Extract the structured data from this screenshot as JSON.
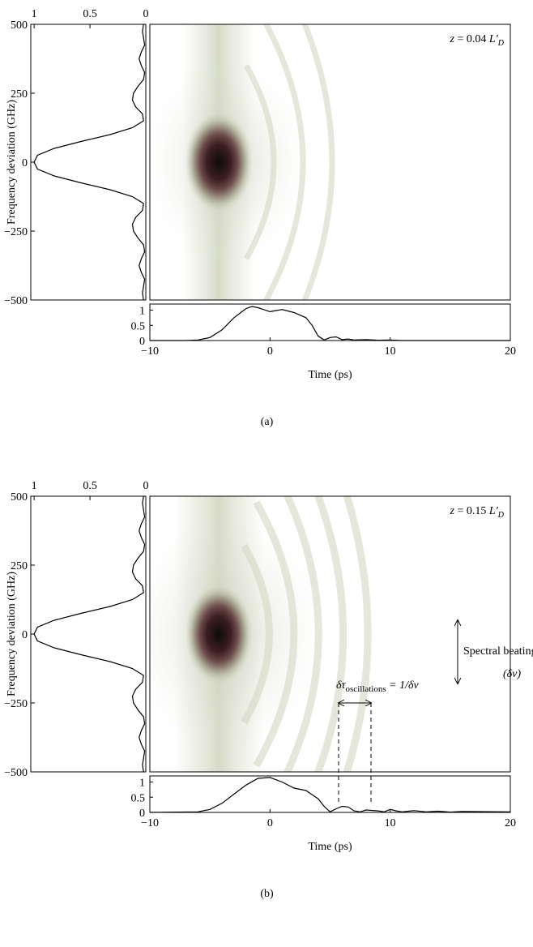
{
  "chart_data": [
    {
      "type": "spectrogram",
      "label": "(a)",
      "ylabel": "Frequency deviation (GHz)",
      "xlabel": "Time (ps)",
      "annotation": {
        "var": "z",
        "eq": " = 0.04 ",
        "sym": "L′",
        "sub": "D"
      },
      "line_color": "#000000",
      "spectrum": {
        "frequency": [
          -500,
          -475,
          -450,
          -425,
          -400,
          -375,
          -350,
          -325,
          -300,
          -275,
          -250,
          -225,
          -200,
          -175,
          -150,
          -125,
          -100,
          -75,
          -50,
          -25,
          0,
          25,
          50,
          75,
          100,
          125,
          150,
          175,
          200,
          225,
          250,
          275,
          300,
          325,
          350,
          375,
          400,
          425,
          450,
          475,
          500
        ],
        "values": [
          0.02,
          0.03,
          0.02,
          0.01,
          0.04,
          0.06,
          0.04,
          0.01,
          0.02,
          0.07,
          0.11,
          0.12,
          0.09,
          0.03,
          0.02,
          0.12,
          0.32,
          0.58,
          0.82,
          0.97,
          1.0,
          0.97,
          0.82,
          0.58,
          0.32,
          0.12,
          0.02,
          0.03,
          0.09,
          0.12,
          0.11,
          0.07,
          0.02,
          0.01,
          0.04,
          0.06,
          0.04,
          0.01,
          0.02,
          0.03,
          0.02
        ],
        "xlim": [
          1.03,
          0
        ],
        "xticks": [
          1,
          0.5,
          0
        ],
        "ylim": [
          -500,
          500
        ],
        "yticks": [
          {
            "value": -500,
            "label": "−500"
          },
          {
            "value": -250,
            "label": "−250"
          },
          0,
          250,
          500
        ]
      },
      "temporal": {
        "x": [
          -10,
          -7,
          -6,
          -5,
          -4,
          -3,
          -2,
          -1.5,
          -1,
          0,
          1,
          2,
          3,
          3.5,
          4,
          4.5,
          5,
          5.5,
          6,
          6.5,
          7,
          8,
          9,
          10,
          11,
          20
        ],
        "values": [
          0,
          0,
          0.02,
          0.1,
          0.35,
          0.75,
          1.05,
          1.12,
          1.08,
          0.95,
          1.02,
          0.92,
          0.75,
          0.5,
          0.15,
          0.02,
          0.1,
          0.12,
          0.03,
          0.05,
          0.02,
          0.03,
          0.01,
          0.02,
          0,
          0
        ],
        "xlim": [
          -10,
          20
        ],
        "xticks": [
          {
            "value": -10,
            "label": "−10"
          },
          0,
          10,
          20
        ],
        "ylim": [
          0,
          1.2
        ],
        "yticks": [
          0,
          0.5,
          1
        ]
      }
    },
    {
      "type": "spectrogram",
      "label": "(b)",
      "ylabel": "Frequency deviation (GHz)",
      "xlabel": "Time (ps)",
      "annotation": {
        "var": "z",
        "eq": " = 0.15 ",
        "sym": "L′",
        "sub": "D"
      },
      "line_color": "#000000",
      "notes": {
        "beating": "Spectral beating",
        "beating_symbol": "(δν)",
        "period_symbol": "δτ",
        "period_sub": "oscillations",
        "period_rhs": " = 1/δν"
      },
      "spectrum": {
        "frequency": [
          -500,
          -475,
          -450,
          -425,
          -400,
          -375,
          -350,
          -325,
          -300,
          -275,
          -250,
          -225,
          -200,
          -175,
          -150,
          -125,
          -100,
          -75,
          -50,
          -25,
          0,
          25,
          50,
          75,
          100,
          125,
          150,
          175,
          200,
          225,
          250,
          275,
          300,
          325,
          350,
          375,
          400,
          425,
          450,
          475,
          500
        ],
        "values": [
          0.02,
          0.03,
          0.02,
          0.01,
          0.04,
          0.06,
          0.04,
          0.01,
          0.02,
          0.07,
          0.11,
          0.12,
          0.09,
          0.03,
          0.02,
          0.12,
          0.32,
          0.58,
          0.82,
          0.97,
          1.0,
          0.97,
          0.82,
          0.58,
          0.32,
          0.12,
          0.02,
          0.03,
          0.09,
          0.12,
          0.11,
          0.07,
          0.02,
          0.01,
          0.04,
          0.06,
          0.04,
          0.01,
          0.02,
          0.03,
          0.02
        ],
        "xlim": [
          1.03,
          0
        ],
        "xticks": [
          1,
          0.5,
          0
        ],
        "ylim": [
          -500,
          500
        ],
        "yticks": [
          {
            "value": -500,
            "label": "−500"
          },
          {
            "value": -250,
            "label": "−250"
          },
          0,
          250,
          500
        ]
      },
      "temporal": {
        "x": [
          -10,
          -6,
          -5,
          -4,
          -3,
          -2,
          -1,
          0,
          1,
          2,
          3,
          4,
          4.5,
          5,
          5.5,
          6,
          6.5,
          7,
          7.5,
          8,
          9,
          9.5,
          10,
          10.5,
          11,
          12,
          13,
          14,
          15,
          16,
          20
        ],
        "values": [
          0,
          0.02,
          0.1,
          0.3,
          0.6,
          0.9,
          1.12,
          1.15,
          1.0,
          0.8,
          0.72,
          0.45,
          0.2,
          0.02,
          0.12,
          0.2,
          0.18,
          0.05,
          0.02,
          0.08,
          0.05,
          0.02,
          0.1,
          0.05,
          0.02,
          0.06,
          0.02,
          0.04,
          0.01,
          0.03,
          0.02
        ],
        "xlim": [
          -10,
          20
        ],
        "xticks": [
          {
            "value": -10,
            "label": "−10"
          },
          0,
          10,
          20
        ],
        "ylim": [
          0,
          1.2
        ],
        "yticks": [
          0,
          0.5,
          1
        ]
      }
    }
  ]
}
